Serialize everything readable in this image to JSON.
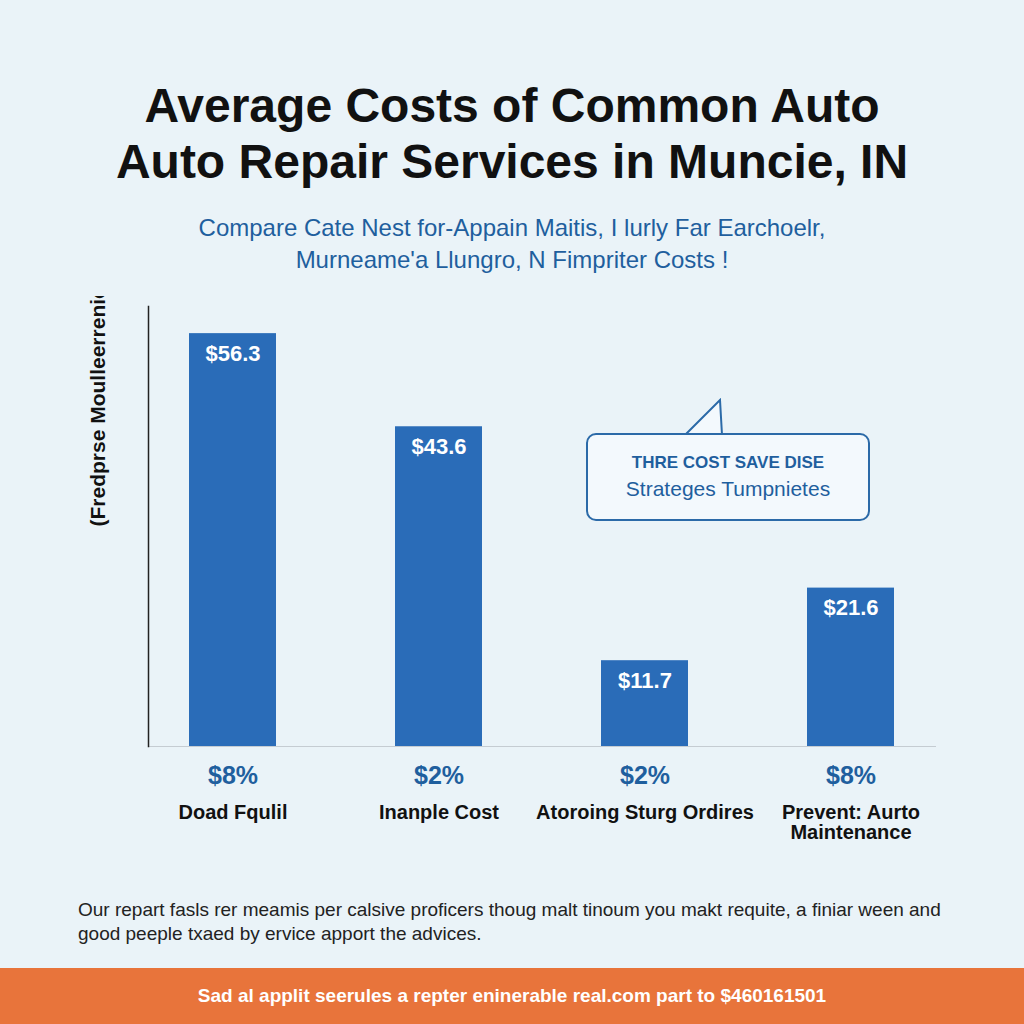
{
  "chart_data": {
    "type": "bar",
    "title": "Average Costs of Common Auto Auto Repair Services in Muncie, IN",
    "subtitle": "Compare Cate Nest for-Appain Maitis, I lurly Far Earchoelr, Murneame'a Llungro, N Fimpriter Costs !",
    "y_label": "(Fredprse Moulleerrenicnc )",
    "categories": [
      "Doad Fqulil",
      "Inanple Cost",
      "Atoroing Sturg Ordires",
      "Prevent: Aurto Maintenance"
    ],
    "values": [
      56.3,
      43.6,
      11.7,
      21.6
    ],
    "value_labels": [
      "$56.3",
      "$43.6",
      "$11.7",
      "$21.6"
    ],
    "annotations": [
      "$8%",
      "$2%",
      "$2%",
      "$8%"
    ],
    "callout": [
      "THRE COST SAVE DISE",
      "Strateges Tumpnietes"
    ],
    "caption": "Our repart fasls rer meamis per calsive proficers thoug malt tinoum you makt requite, a finiar ween and good peeple txaed by ervice apport the advices.",
    "footer": "Sad al applit seerules a repter eninerable real.com part to $460161501",
    "color": "#2a6cb8",
    "ylim": [
      0,
      60
    ],
    "yticks": [],
    "grid": false,
    "data_labels": true,
    "tick_labels": "x"
  }
}
